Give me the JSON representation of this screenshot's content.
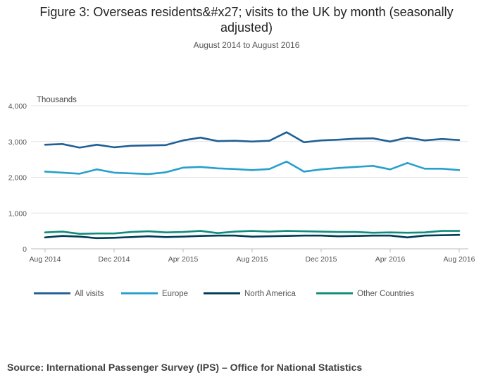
{
  "chart_data": {
    "type": "line",
    "title": "Figure 3: Overseas residents&#x27; visits to the UK by month (seasonally adjusted)",
    "subtitle": "August 2014 to August 2016",
    "ylabel": "Thousands",
    "ylim": [
      0,
      4000
    ],
    "yticks": [
      0,
      1000,
      2000,
      3000,
      4000
    ],
    "ytick_labels": [
      "0",
      "1,000",
      "2,000",
      "3,000",
      "4,000"
    ],
    "x": [
      "Aug 2014",
      "Sep 2014",
      "Oct 2014",
      "Nov 2014",
      "Dec 2014",
      "Jan 2015",
      "Feb 2015",
      "Mar 2015",
      "Apr 2015",
      "May 2015",
      "Jun 2015",
      "Jul 2015",
      "Aug 2015",
      "Sep 2015",
      "Oct 2015",
      "Nov 2015",
      "Dec 2015",
      "Jan 2016",
      "Feb 2016",
      "Mar 2016",
      "Apr 2016",
      "May 2016",
      "Jun 2016",
      "Jul 2016",
      "Aug 2016"
    ],
    "xtick_labels": [
      "Aug 2014",
      "Dec 2014",
      "Apr 2015",
      "Aug 2015",
      "Dec 2015",
      "Apr 2016",
      "Aug 2016"
    ],
    "grid": true,
    "legend_position": "bottom",
    "series": [
      {
        "name": "All visits",
        "color": "#206095",
        "values": [
          2910,
          2930,
          2830,
          2910,
          2840,
          2880,
          2890,
          2900,
          3030,
          3110,
          3010,
          3020,
          3000,
          3020,
          3260,
          2980,
          3030,
          3050,
          3080,
          3090,
          3000,
          3110,
          3030,
          3070,
          3040
        ]
      },
      {
        "name": "Europe",
        "color": "#27a0cc",
        "values": [
          2160,
          2130,
          2100,
          2220,
          2130,
          2110,
          2090,
          2140,
          2270,
          2290,
          2250,
          2230,
          2200,
          2230,
          2440,
          2160,
          2220,
          2260,
          2290,
          2320,
          2220,
          2400,
          2240,
          2240,
          2200
        ]
      },
      {
        "name": "North America",
        "color": "#003c57",
        "values": [
          320,
          360,
          340,
          300,
          310,
          330,
          350,
          330,
          340,
          360,
          370,
          370,
          340,
          350,
          360,
          370,
          370,
          350,
          360,
          370,
          370,
          320,
          370,
          380,
          390
        ]
      },
      {
        "name": "Other Countries",
        "color": "#118c7b",
        "values": [
          460,
          480,
          420,
          430,
          430,
          470,
          490,
          460,
          470,
          500,
          440,
          480,
          500,
          480,
          500,
          490,
          480,
          470,
          470,
          450,
          460,
          450,
          460,
          500,
          500
        ]
      }
    ]
  },
  "source": "Source: International Passenger Survey (IPS) – Office for National Statistics"
}
